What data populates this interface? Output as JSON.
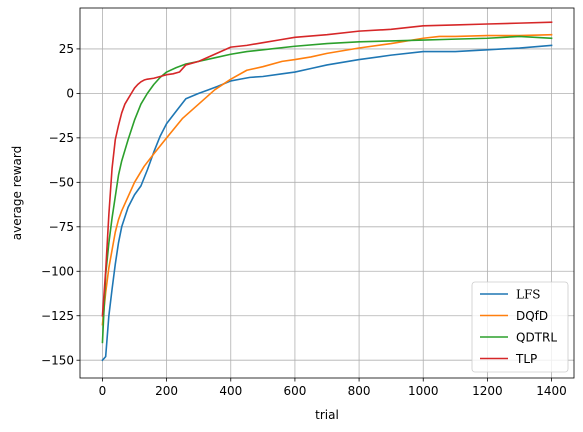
{
  "chart_data": {
    "type": "line",
    "xlabel": "trial",
    "ylabel": "average reward",
    "xlim": [
      -70,
      1470
    ],
    "ylim": [
      -160,
      48
    ],
    "xticks": [
      0,
      200,
      400,
      600,
      800,
      1000,
      1200,
      1400
    ],
    "yticks": [
      -150,
      -125,
      -100,
      -75,
      -50,
      -25,
      0,
      25
    ],
    "grid": true,
    "legend_position": "bottom-right",
    "series": [
      {
        "name": "LFS",
        "color": "#1f77b4",
        "x": [
          0,
          10,
          20,
          30,
          40,
          50,
          60,
          80,
          100,
          120,
          140,
          160,
          180,
          200,
          230,
          260,
          300,
          330,
          360,
          400,
          430,
          460,
          500,
          560,
          600,
          650,
          700,
          800,
          900,
          1000,
          1050,
          1100,
          1200,
          1300,
          1400
        ],
        "y": [
          -150,
          -148,
          -125,
          -110,
          -96,
          -84,
          -75,
          -64,
          -57,
          -52,
          -43,
          -33,
          -24,
          -17,
          -10,
          -3,
          0,
          2,
          4,
          7,
          8,
          9,
          9.5,
          11,
          12,
          14,
          16,
          19,
          21.5,
          23.5,
          23.5,
          23.5,
          24.5,
          25.5,
          27
        ]
      },
      {
        "name": "DQfD",
        "color": "#ff7f0e",
        "x": [
          0,
          10,
          20,
          30,
          40,
          50,
          60,
          80,
          100,
          130,
          160,
          200,
          250,
          300,
          350,
          400,
          450,
          500,
          560,
          600,
          650,
          700,
          800,
          900,
          1000,
          1050,
          1100,
          1200,
          1300,
          1400
        ],
        "y": [
          -130,
          -112,
          -98,
          -88,
          -78,
          -71,
          -66,
          -58,
          -50,
          -41,
          -34,
          -25,
          -14,
          -6,
          2,
          8,
          13,
          15,
          18,
          19,
          20.5,
          22.5,
          25.5,
          28,
          31,
          32,
          32,
          32.5,
          32.5,
          33
        ]
      },
      {
        "name": "QDTRL",
        "color": "#2ca02c",
        "x": [
          0,
          10,
          20,
          30,
          40,
          50,
          60,
          80,
          100,
          120,
          140,
          160,
          180,
          200,
          230,
          260,
          300,
          350,
          400,
          450,
          500,
          600,
          700,
          800,
          900,
          1000,
          1100,
          1200,
          1300,
          1400
        ],
        "y": [
          -140,
          -102,
          -84,
          -70,
          -58,
          -46,
          -38,
          -26,
          -15,
          -6,
          0,
          5,
          9,
          12,
          14.5,
          16.5,
          18,
          20,
          22,
          23.5,
          24.5,
          26.5,
          28,
          29,
          29.5,
          30,
          30.5,
          31,
          32,
          31
        ]
      },
      {
        "name": "TLP",
        "color": "#d62728",
        "x": [
          0,
          10,
          20,
          30,
          40,
          50,
          60,
          70,
          80,
          90,
          100,
          110,
          120,
          130,
          140,
          160,
          180,
          200,
          220,
          240,
          260,
          300,
          350,
          400,
          450,
          500,
          550,
          600,
          700,
          800,
          900,
          1000,
          1100,
          1200,
          1300,
          1400
        ],
        "y": [
          -125,
          -100,
          -68,
          -42,
          -26,
          -18,
          -11,
          -6,
          -3,
          0,
          3,
          5,
          6.5,
          7.5,
          8,
          8.5,
          9.5,
          10.5,
          11,
          12,
          16,
          18,
          22,
          26,
          27,
          28.5,
          30,
          31.5,
          33,
          35,
          36,
          38,
          38.5,
          39,
          39.5,
          40
        ]
      }
    ]
  }
}
